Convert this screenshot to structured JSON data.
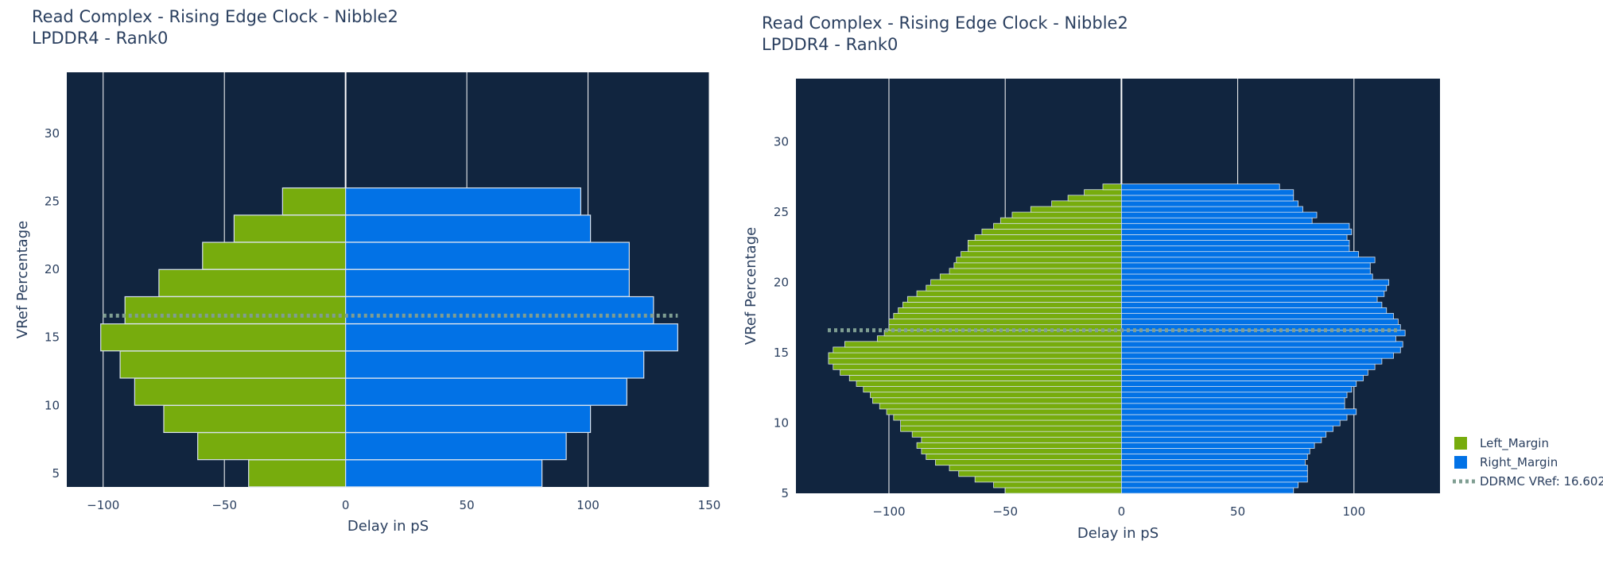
{
  "chart_data": [
    {
      "type": "bar",
      "orientation": "horizontal",
      "barmode": "relative",
      "title": "Read Complex - Rising Edge Clock - Nibble2",
      "subtitle": "LPDDR4 - Rank0",
      "xlabel": "Delay in pS",
      "ylabel": "VRef Percentage",
      "xlim": [
        -115,
        150
      ],
      "ylim": [
        4,
        34.5
      ],
      "xticks": [
        -100,
        -50,
        0,
        50,
        100,
        150
      ],
      "yticks": [
        5,
        10,
        15,
        20,
        25,
        30
      ],
      "plot_bgcolor": "#11253f",
      "grid": "vertical only",
      "y": [
        5,
        7,
        9,
        11,
        13,
        15,
        17,
        19,
        21,
        23,
        25
      ],
      "series": [
        {
          "name": "Left_Margin",
          "color": "#77ac0d",
          "values": [
            -40,
            -61,
            -75,
            -87,
            -93,
            -101,
            -91,
            -77,
            -59,
            -46,
            -26
          ]
        },
        {
          "name": "Right_Margin",
          "color": "#0272e6",
          "values": [
            81,
            91,
            101,
            116,
            123,
            137,
            127,
            117,
            117,
            101,
            97
          ]
        }
      ],
      "reference_line": {
        "name": "DDRMC VRef: 16.602",
        "value": 16.602,
        "color": "#7f9e92",
        "style": "dotted"
      }
    },
    {
      "type": "bar",
      "orientation": "horizontal",
      "barmode": "relative",
      "title": "Read Complex - Rising Edge Clock - Nibble2",
      "subtitle": "LPDDR4 - Rank0",
      "xlabel": "Delay in pS",
      "ylabel": "VRef Percentage",
      "xlim": [
        -140,
        137
      ],
      "ylim": [
        5,
        34.5
      ],
      "xticks": [
        -100,
        -50,
        0,
        50,
        100
      ],
      "yticks": [
        5,
        10,
        15,
        20,
        25,
        30
      ],
      "plot_bgcolor": "#11253f",
      "grid": "vertical only",
      "y": [
        5.2,
        5.6,
        6,
        6.4,
        6.8,
        7.2,
        7.6,
        8,
        8.4,
        8.8,
        9.2,
        9.6,
        10,
        10.4,
        10.8,
        11.2,
        11.6,
        12,
        12.4,
        12.8,
        13.2,
        13.6,
        14,
        14.4,
        14.8,
        15.2,
        15.6,
        16,
        16.4,
        16.8,
        17.2,
        17.6,
        18,
        18.4,
        18.8,
        19.2,
        19.6,
        20,
        20.4,
        20.8,
        21.2,
        21.6,
        22,
        22.4,
        22.8,
        23.2,
        23.6,
        24,
        24.4,
        24.8,
        25.2,
        25.6,
        26,
        26.4,
        26.8
      ],
      "series": [
        {
          "name": "Left_Margin",
          "color": "#77ac0d",
          "values": [
            -50,
            -55,
            -63,
            -70,
            -74,
            -80,
            -84,
            -86,
            -88,
            -86,
            -90,
            -95,
            -95,
            -98,
            -101,
            -104,
            -107,
            -108,
            -111,
            -114,
            -117,
            -121,
            -124,
            -126,
            -126,
            -124,
            -119,
            -105,
            -102,
            -100,
            -100,
            -98,
            -96,
            -94,
            -92,
            -88,
            -84,
            -82,
            -78,
            -74,
            -72,
            -71,
            -69,
            -66,
            -66,
            -63,
            -60,
            -55,
            -52,
            -47,
            -39,
            -30,
            -23,
            -16,
            -8
          ]
        },
        {
          "name": "Right_Margin",
          "color": "#0272e6",
          "values": [
            74,
            76,
            80,
            80,
            80,
            79,
            80,
            81,
            83,
            86,
            88,
            91,
            94,
            97,
            101,
            96,
            96,
            97,
            99,
            101,
            104,
            106,
            109,
            112,
            117,
            120,
            121,
            118,
            122,
            120,
            119,
            117,
            114,
            112,
            110,
            113,
            114,
            115,
            108,
            107,
            107,
            109,
            102,
            98,
            98,
            97,
            99,
            98,
            82,
            84,
            78,
            76,
            74,
            74,
            68
          ]
        }
      ],
      "reference_line": {
        "name": "DDRMC VRef: 16.602",
        "value": 16.602,
        "color": "#7f9e92",
        "style": "dotted"
      },
      "legend": {
        "placement": "bottom-right",
        "entries": [
          "Left_Margin",
          "Right_Margin",
          "DDRMC VRef: 16.602"
        ]
      }
    }
  ]
}
